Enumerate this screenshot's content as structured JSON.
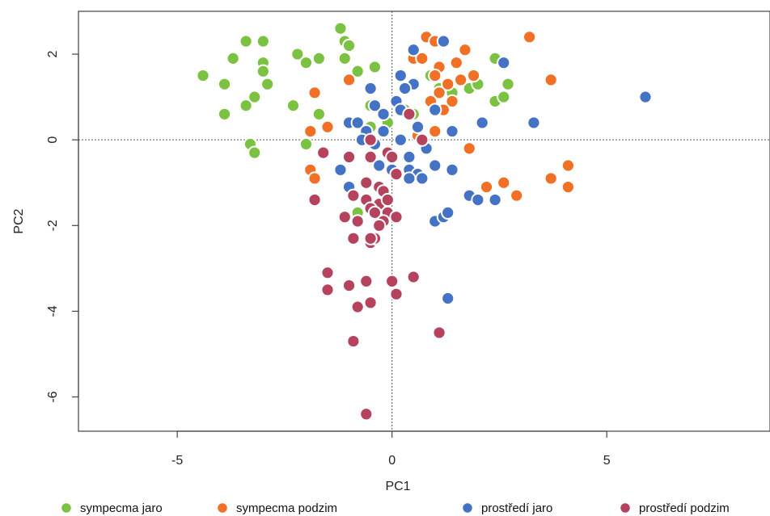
{
  "chart_data": {
    "type": "scatter",
    "xlabel": "PC1",
    "ylabel": "PC2",
    "xlim": [
      -7.3,
      8.8
    ],
    "ylim": [
      -6.8,
      3.0
    ],
    "x_ticks": [
      -5,
      0,
      5
    ],
    "y_ticks": [
      2,
      0,
      -2,
      -4,
      -6
    ],
    "reference_lines": {
      "x": 0,
      "y": 0,
      "style": "dotted"
    },
    "grid": false,
    "legend_position": "bottom",
    "series": [
      {
        "name": "sympecma jaro",
        "color": "#7cc242",
        "points": [
          [
            -4.4,
            1.5
          ],
          [
            -3.9,
            1.3
          ],
          [
            -3.7,
            1.9
          ],
          [
            -3.4,
            2.3
          ],
          [
            -3.0,
            2.3
          ],
          [
            -3.0,
            1.8
          ],
          [
            -3.0,
            1.6
          ],
          [
            -2.9,
            1.3
          ],
          [
            -3.2,
            1.0
          ],
          [
            -3.4,
            0.8
          ],
          [
            -3.9,
            0.6
          ],
          [
            -3.3,
            -0.1
          ],
          [
            -3.2,
            -0.3
          ],
          [
            -2.3,
            0.8
          ],
          [
            -2.2,
            2.0
          ],
          [
            -2.0,
            1.8
          ],
          [
            -1.7,
            1.9
          ],
          [
            -1.7,
            0.6
          ],
          [
            -2.0,
            -0.1
          ],
          [
            -1.2,
            2.6
          ],
          [
            -1.1,
            2.3
          ],
          [
            -1.0,
            2.2
          ],
          [
            -1.1,
            1.9
          ],
          [
            -0.8,
            1.6
          ],
          [
            -0.4,
            1.7
          ],
          [
            -0.5,
            0.8
          ],
          [
            -0.5,
            0.3
          ],
          [
            -0.1,
            0.4
          ],
          [
            0.5,
            0.6
          ],
          [
            0.3,
            0.7
          ],
          [
            0.9,
            1.5
          ],
          [
            1.1,
            1.2
          ],
          [
            1.4,
            1.1
          ],
          [
            1.8,
            1.2
          ],
          [
            2.0,
            1.3
          ],
          [
            2.4,
            1.9
          ],
          [
            2.4,
            0.9
          ],
          [
            2.6,
            1.0
          ],
          [
            2.7,
            1.3
          ],
          [
            -0.8,
            -1.7
          ],
          [
            0.8,
            -0.2
          ]
        ]
      },
      {
        "name": "sympecma podzim",
        "color": "#f07025",
        "points": [
          [
            3.2,
            2.4
          ],
          [
            0.8,
            2.4
          ],
          [
            1.0,
            2.3
          ],
          [
            1.7,
            2.1
          ],
          [
            0.5,
            1.9
          ],
          [
            0.7,
            1.9
          ],
          [
            1.1,
            1.7
          ],
          [
            1.5,
            1.8
          ],
          [
            1.0,
            1.5
          ],
          [
            1.3,
            1.3
          ],
          [
            1.6,
            1.4
          ],
          [
            1.9,
            1.5
          ],
          [
            3.7,
            1.4
          ],
          [
            1.1,
            1.1
          ],
          [
            1.4,
            0.9
          ],
          [
            0.9,
            0.9
          ],
          [
            1.2,
            0.7
          ],
          [
            -1.8,
            1.1
          ],
          [
            -1.0,
            1.4
          ],
          [
            -1.9,
            0.2
          ],
          [
            -1.5,
            0.3
          ],
          [
            1.0,
            0.2
          ],
          [
            1.8,
            -0.2
          ],
          [
            -1.9,
            -0.7
          ],
          [
            -1.8,
            -0.9
          ],
          [
            2.2,
            -1.1
          ],
          [
            2.6,
            -1.0
          ],
          [
            2.9,
            -1.3
          ],
          [
            3.7,
            -0.9
          ],
          [
            4.1,
            -0.6
          ],
          [
            4.1,
            -1.1
          ],
          [
            0.6,
            0.1
          ]
        ]
      },
      {
        "name": "prostředí jaro",
        "color": "#4472c4",
        "points": [
          [
            1.2,
            2.3
          ],
          [
            0.5,
            2.1
          ],
          [
            2.6,
            1.8
          ],
          [
            0.2,
            1.5
          ],
          [
            0.5,
            1.3
          ],
          [
            0.3,
            1.2
          ],
          [
            -0.5,
            1.2
          ],
          [
            -1.0,
            0.4
          ],
          [
            0.1,
            0.9
          ],
          [
            -0.4,
            0.8
          ],
          [
            0.2,
            0.7
          ],
          [
            -0.2,
            0.6
          ],
          [
            -0.8,
            0.4
          ],
          [
            -0.6,
            0.2
          ],
          [
            -0.2,
            0.2
          ],
          [
            0.6,
            0.3
          ],
          [
            1.0,
            0.7
          ],
          [
            5.9,
            1.0
          ],
          [
            3.3,
            0.4
          ],
          [
            2.1,
            0.4
          ],
          [
            1.4,
            0.2
          ],
          [
            -0.7,
            0.0
          ],
          [
            -0.4,
            -0.1
          ],
          [
            0.2,
            0.0
          ],
          [
            0.4,
            -0.4
          ],
          [
            0.8,
            -0.2
          ],
          [
            -1.2,
            -0.7
          ],
          [
            -0.3,
            -0.6
          ],
          [
            0.0,
            -0.7
          ],
          [
            0.4,
            -0.7
          ],
          [
            0.6,
            -0.8
          ],
          [
            0.7,
            -0.9
          ],
          [
            0.4,
            -0.9
          ],
          [
            1.0,
            -0.6
          ],
          [
            1.4,
            -0.7
          ],
          [
            1.8,
            -1.3
          ],
          [
            2.0,
            -1.4
          ],
          [
            2.4,
            -1.4
          ],
          [
            1.0,
            -1.9
          ],
          [
            1.2,
            -1.8
          ],
          [
            1.3,
            -1.7
          ],
          [
            1.3,
            -3.7
          ],
          [
            -1.0,
            -1.1
          ]
        ]
      },
      {
        "name": "prostředí podzim",
        "color": "#b5435e",
        "points": [
          [
            0.4,
            0.6
          ],
          [
            -0.5,
            0.0
          ],
          [
            0.7,
            0.0
          ],
          [
            -1.6,
            -0.3
          ],
          [
            -1.0,
            -0.4
          ],
          [
            -0.5,
            -0.4
          ],
          [
            -0.1,
            -0.3
          ],
          [
            0.0,
            -0.4
          ],
          [
            0.1,
            -0.8
          ],
          [
            -0.6,
            -1.0
          ],
          [
            -0.3,
            -1.1
          ],
          [
            -0.9,
            -1.3
          ],
          [
            -0.6,
            -1.4
          ],
          [
            -0.3,
            -1.5
          ],
          [
            -0.2,
            -1.2
          ],
          [
            -0.5,
            -1.6
          ],
          [
            -0.1,
            -1.4
          ],
          [
            -0.8,
            -1.9
          ],
          [
            -0.4,
            -1.7
          ],
          [
            -0.1,
            -1.7
          ],
          [
            -1.1,
            -1.8
          ],
          [
            -0.8,
            -1.9
          ],
          [
            -0.2,
            -1.9
          ],
          [
            0.1,
            -1.8
          ],
          [
            -1.8,
            -1.4
          ],
          [
            -0.3,
            -2.0
          ],
          [
            -0.9,
            -2.3
          ],
          [
            -0.5,
            -2.4
          ],
          [
            -0.4,
            -2.3
          ],
          [
            -1.5,
            -3.1
          ],
          [
            -1.5,
            -3.5
          ],
          [
            -1.0,
            -3.4
          ],
          [
            -0.6,
            -3.3
          ],
          [
            0.0,
            -3.3
          ],
          [
            0.5,
            -3.2
          ],
          [
            0.1,
            -3.6
          ],
          [
            -0.8,
            -3.9
          ],
          [
            -0.5,
            -3.8
          ],
          [
            1.1,
            -4.5
          ],
          [
            -0.9,
            -4.7
          ],
          [
            -0.6,
            -6.4
          ],
          [
            -0.5,
            -2.3
          ]
        ]
      }
    ]
  }
}
